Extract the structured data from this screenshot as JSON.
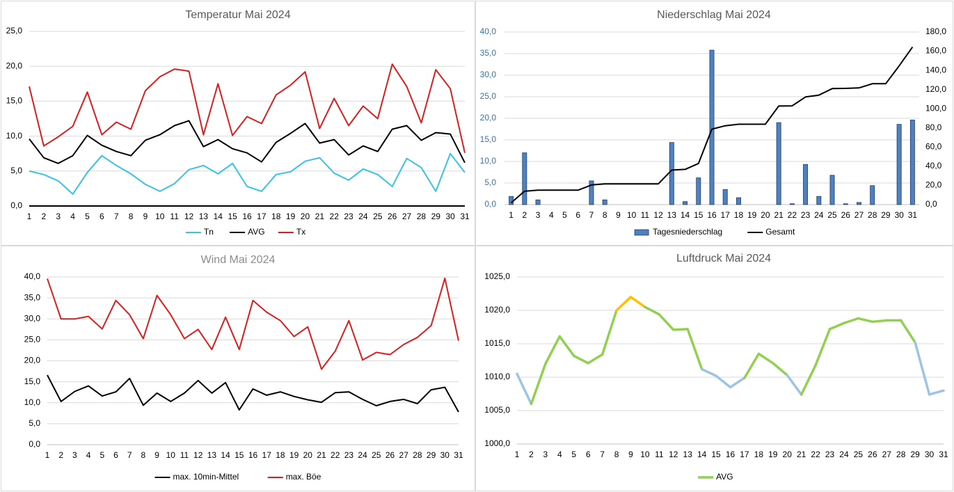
{
  "chart_data": [
    {
      "type": "line",
      "title": "Temperatur Mai 2024",
      "categories": [
        "1",
        "2",
        "3",
        "4",
        "5",
        "6",
        "7",
        "8",
        "9",
        "10",
        "11",
        "12",
        "13",
        "14",
        "15",
        "16",
        "17",
        "18",
        "19",
        "20",
        "21",
        "22",
        "23",
        "24",
        "25",
        "26",
        "27",
        "28",
        "29",
        "30",
        "31"
      ],
      "series": [
        {
          "name": "Tn",
          "color": "#34c3e8",
          "values": [
            5.0,
            4.5,
            3.6,
            1.7,
            4.8,
            7.2,
            5.8,
            4.6,
            3.1,
            2.1,
            3.2,
            5.2,
            5.8,
            4.6,
            6.1,
            2.8,
            2.1,
            4.5,
            4.9,
            6.4,
            6.9,
            4.7,
            3.7,
            5.3,
            4.5,
            2.8,
            6.8,
            5.5,
            2.1,
            7.5,
            4.8
          ]
        },
        {
          "name": "AVG",
          "color": "#000000",
          "values": [
            9.6,
            6.9,
            6.1,
            7.2,
            10.1,
            8.7,
            7.8,
            7.2,
            9.4,
            10.2,
            11.5,
            12.2,
            8.5,
            9.5,
            8.2,
            7.6,
            6.3,
            9.1,
            10.4,
            11.8,
            9.0,
            9.5,
            7.3,
            8.6,
            7.8,
            11.0,
            11.5,
            9.4,
            10.5,
            10.3,
            6.2
          ]
        },
        {
          "name": "Tx",
          "color": "#e01b1b",
          "values": [
            17.1,
            8.6,
            9.9,
            11.4,
            16.3,
            10.2,
            12.0,
            11.0,
            16.5,
            18.5,
            19.6,
            19.3,
            10.2,
            17.5,
            10.1,
            12.8,
            11.8,
            15.9,
            17.3,
            19.2,
            11.1,
            15.4,
            11.5,
            14.3,
            12.5,
            20.3,
            17.1,
            11.9,
            19.5,
            16.8,
            7.6
          ]
        }
      ],
      "ylim": [
        0,
        25
      ],
      "yticks": [
        {
          "value": 0,
          "label": "0,0"
        },
        {
          "value": 5,
          "label": "5,0"
        },
        {
          "value": 10,
          "label": "10,0"
        },
        {
          "value": 15,
          "label": "15,0"
        },
        {
          "value": 20,
          "label": "20,0"
        },
        {
          "value": 25,
          "label": "25,0"
        }
      ],
      "grid": true
    },
    {
      "type": "combo",
      "title": "Niederschlag Mai 2024",
      "categories": [
        "1",
        "2",
        "3",
        "4",
        "5",
        "6",
        "7",
        "8",
        "9",
        "10",
        "11",
        "12",
        "13",
        "14",
        "15",
        "16",
        "17",
        "18",
        "19",
        "20",
        "21",
        "22",
        "23",
        "24",
        "25",
        "26",
        "27",
        "28",
        "29",
        "30",
        "31"
      ],
      "series": [
        {
          "name": "Tagesniederschlag",
          "type": "bar",
          "color": "#4f81bd",
          "values": [
            1.9,
            12.0,
            1.1,
            0,
            0,
            0,
            5.5,
            1.1,
            0,
            0,
            0,
            0,
            14.4,
            0.7,
            6.2,
            35.8,
            3.5,
            1.6,
            0,
            0,
            19.0,
            0.2,
            9.3,
            1.9,
            6.8,
            0.2,
            0.5,
            4.4,
            0,
            18.6,
            19.6
          ]
        },
        {
          "name": "Gesamt",
          "type": "line",
          "axis": "y2",
          "color": "#000000",
          "values": [
            1.9,
            13.9,
            15.0,
            15.0,
            15.0,
            15.0,
            20.5,
            21.6,
            21.6,
            21.6,
            21.6,
            21.6,
            36.0,
            36.7,
            42.9,
            78.7,
            82.2,
            83.8,
            83.8,
            83.8,
            102.8,
            103.0,
            112.3,
            114.2,
            121.0,
            121.2,
            121.7,
            126.1,
            126.1,
            144.7,
            164.3
          ]
        }
      ],
      "ylim": [
        0,
        40
      ],
      "yticks": [
        {
          "value": 0,
          "label": "0,0"
        },
        {
          "value": 5,
          "label": "5,0"
        },
        {
          "value": 10,
          "label": "10,0"
        },
        {
          "value": 15,
          "label": "15,0"
        },
        {
          "value": 20,
          "label": "20,0"
        },
        {
          "value": 25,
          "label": "25,0"
        },
        {
          "value": 30,
          "label": "30,0"
        },
        {
          "value": 35,
          "label": "35,0"
        },
        {
          "value": 40,
          "label": "40,0"
        }
      ],
      "y2lim": [
        0,
        180
      ],
      "y2ticks": [
        {
          "value": 0,
          "label": "0,0"
        },
        {
          "value": 20,
          "label": "20,0"
        },
        {
          "value": 40,
          "label": "40,0"
        },
        {
          "value": 60,
          "label": "60,0"
        },
        {
          "value": 80,
          "label": "80,0"
        },
        {
          "value": 100,
          "label": "100,0"
        },
        {
          "value": 120,
          "label": "120,0"
        },
        {
          "value": 140,
          "label": "140,0"
        },
        {
          "value": 160,
          "label": "160,0"
        },
        {
          "value": 180,
          "label": "180,0"
        }
      ],
      "grid": true
    },
    {
      "type": "line",
      "title": "Wind Mai 2024",
      "categories": [
        "1",
        "2",
        "3",
        "4",
        "5",
        "6",
        "7",
        "8",
        "9",
        "10",
        "11",
        "12",
        "13",
        "14",
        "15",
        "16",
        "17",
        "18",
        "19",
        "20",
        "21",
        "22",
        "23",
        "24",
        "25",
        "26",
        "27",
        "28",
        "29",
        "30",
        "31"
      ],
      "series": [
        {
          "name": "max. 10min-Mittel",
          "color": "#000000",
          "values": [
            16.6,
            10.3,
            12.7,
            14.0,
            11.6,
            12.6,
            15.8,
            9.4,
            12.3,
            10.3,
            12.3,
            15.3,
            12.3,
            14.8,
            8.3,
            13.3,
            11.8,
            12.6,
            11.5,
            10.7,
            10.1,
            12.4,
            12.6,
            10.8,
            9.3,
            10.3,
            10.8,
            9.8,
            13.1,
            13.7,
            7.8
          ]
        },
        {
          "name": "max. Böe",
          "color": "#e01b1b",
          "values": [
            39.6,
            30.0,
            30.0,
            30.6,
            27.6,
            34.4,
            31.0,
            25.3,
            35.6,
            31.0,
            25.3,
            27.5,
            22.7,
            30.4,
            22.7,
            34.4,
            31.6,
            29.6,
            25.8,
            28.1,
            18.0,
            22.3,
            29.6,
            20.2,
            22.0,
            21.5,
            23.9,
            25.6,
            28.4,
            39.7,
            24.8
          ]
        }
      ],
      "ylim": [
        0,
        40
      ],
      "yticks": [
        {
          "value": 0,
          "label": "0,0"
        },
        {
          "value": 5,
          "label": "5,0"
        },
        {
          "value": 10,
          "label": "10,0"
        },
        {
          "value": 15,
          "label": "15,0"
        },
        {
          "value": 20,
          "label": "20,0"
        },
        {
          "value": 25,
          "label": "25,0"
        },
        {
          "value": 30,
          "label": "30,0"
        },
        {
          "value": 35,
          "label": "35,0"
        },
        {
          "value": 40,
          "label": "40,0"
        }
      ],
      "grid": true
    },
    {
      "type": "line",
      "title": "Luftdruck Mai 2024",
      "categories": [
        "1",
        "2",
        "3",
        "4",
        "5",
        "6",
        "7",
        "8",
        "9",
        "10",
        "11",
        "12",
        "13",
        "14",
        "15",
        "16",
        "17",
        "18",
        "19",
        "20",
        "21",
        "22",
        "23",
        "24",
        "25",
        "26",
        "27",
        "28",
        "29",
        "30",
        "31"
      ],
      "series": [
        {
          "name": "AVG",
          "color": "#92d050",
          "values": [
            1010.5,
            1006.0,
            1012.0,
            1016.1,
            1013.2,
            1012.1,
            1013.4,
            1020.0,
            1022.0,
            1020.5,
            1019.4,
            1017.1,
            1017.2,
            1011.2,
            1010.2,
            1008.5,
            1009.9,
            1013.5,
            1012.1,
            1010.3,
            1007.4,
            1011.8,
            1017.2,
            1018.1,
            1018.8,
            1018.3,
            1018.5,
            1018.5,
            1015.2,
            1007.4,
            1008.0
          ],
          "point_colors": [
            "#9dc3e6",
            "#9dc3e6",
            "#92d050",
            "#92d050",
            "#92d050",
            "#92d050",
            "#92d050",
            "#92d050",
            "#ffc000",
            "#ffc000",
            "#92d050",
            "#92d050",
            "#92d050",
            "#92d050",
            "#9dc3e6",
            "#9dc3e6",
            "#9dc3e6",
            "#92d050",
            "#92d050",
            "#92d050",
            "#9dc3e6",
            "#92d050",
            "#92d050",
            "#92d050",
            "#92d050",
            "#92d050",
            "#92d050",
            "#92d050",
            "#92d050",
            "#9dc3e6",
            "#9dc3e6"
          ]
        }
      ],
      "ylim": [
        1000,
        1025
      ],
      "yticks": [
        {
          "value": 1000,
          "label": "1000,0"
        },
        {
          "value": 1005,
          "label": "1005,0"
        },
        {
          "value": 1010,
          "label": "1010,0"
        },
        {
          "value": 1015,
          "label": "1015,0"
        },
        {
          "value": 1020,
          "label": "1020,0"
        },
        {
          "value": 1025,
          "label": "1025,0"
        }
      ],
      "grid": true
    }
  ]
}
